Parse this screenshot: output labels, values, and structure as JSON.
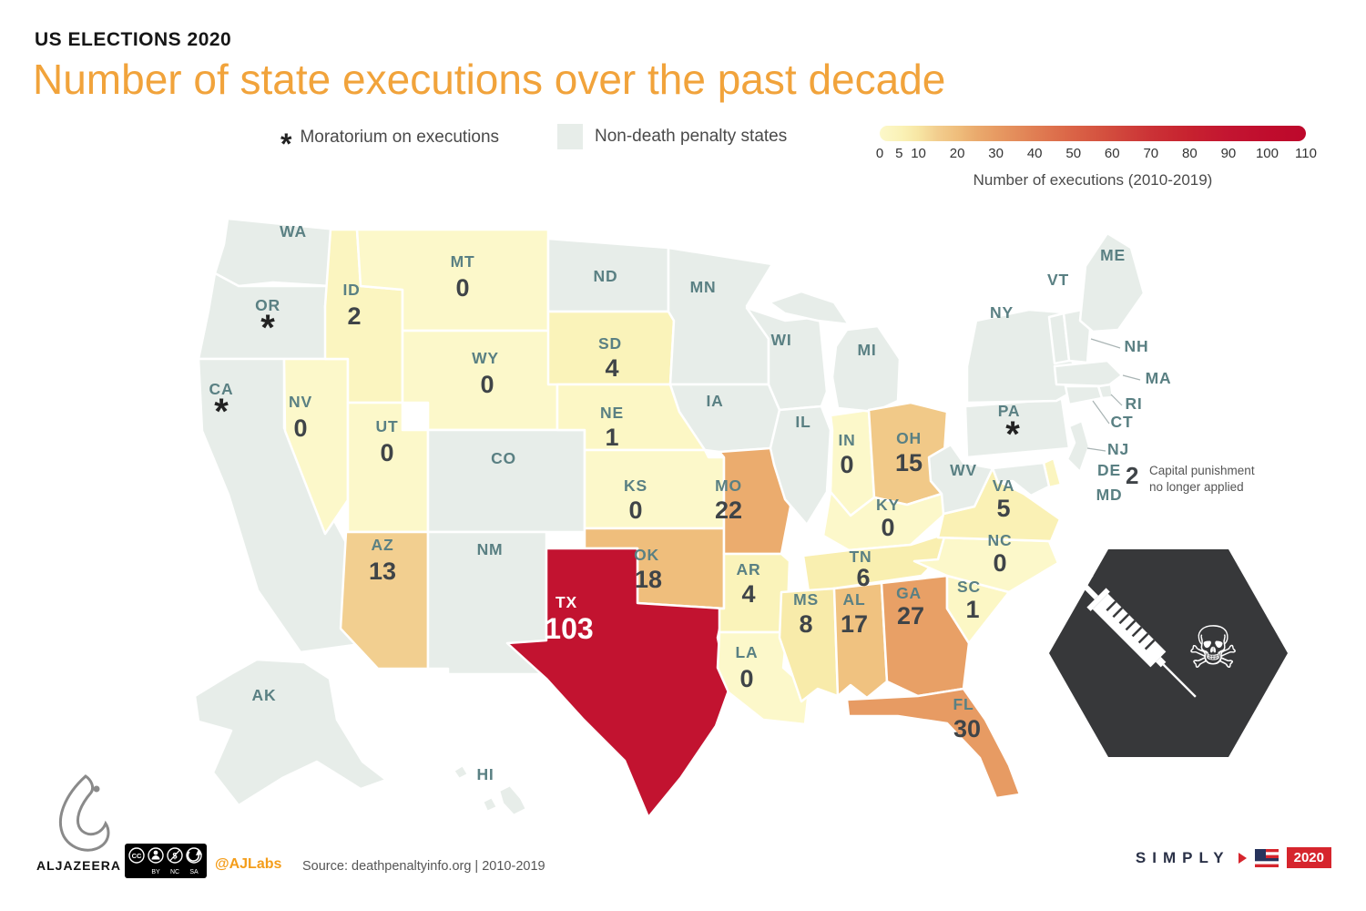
{
  "header": {
    "kicker": "US ELECTIONS 2020",
    "title": "Number of state executions over the past decade"
  },
  "legend": {
    "moratorium_symbol": "*",
    "moratorium_label": "Moratorium on executions",
    "non_death_label": "Non-death penalty states",
    "scale_label": "Number of executions (2010-2019)",
    "scale_ticks": [
      0,
      5,
      10,
      20,
      30,
      40,
      50,
      60,
      70,
      80,
      90,
      100,
      110
    ],
    "scale_max": 110
  },
  "colors": {
    "title_orange": "#F1A33B",
    "non_death_fill": "#E7EDE9",
    "texas_red": "#C21330",
    "state_code_teal": "#5A8083",
    "value_dark": "#3F4448"
  },
  "icons": {
    "skull": "☠"
  },
  "annotation": {
    "de_value": "2",
    "de_note_line1": "Capital punishment",
    "de_note_line2": "no longer applied"
  },
  "footer": {
    "brand": "ALJAZEERA",
    "cc": {
      "c1": "CC",
      "dollar": "$",
      "by": "BY",
      "nc": "NC",
      "sa": "SA"
    },
    "handle": "@AJLabs",
    "source": "Source: deathpenaltyinfo.org | 2010-2019",
    "simply": "SIMPLY",
    "year": "2020"
  },
  "chart_data": {
    "type": "choropleth",
    "region": "United States",
    "title": "Number of state executions over the past decade",
    "value_label": "Number of executions (2010-2019)",
    "value_range": [
      0,
      110
    ],
    "categories_legend": [
      "Moratorium on executions",
      "Non-death penalty states"
    ],
    "states": [
      {
        "code": "WA",
        "status": "non_death_penalty"
      },
      {
        "code": "OR",
        "status": "moratorium"
      },
      {
        "code": "CA",
        "status": "moratorium"
      },
      {
        "code": "NV",
        "value": 0
      },
      {
        "code": "ID",
        "value": 2
      },
      {
        "code": "UT",
        "value": 0
      },
      {
        "code": "AZ",
        "value": 13
      },
      {
        "code": "MT",
        "value": 0
      },
      {
        "code": "WY",
        "value": 0
      },
      {
        "code": "CO",
        "status": "non_death_penalty"
      },
      {
        "code": "NM",
        "status": "non_death_penalty"
      },
      {
        "code": "ND",
        "status": "non_death_penalty"
      },
      {
        "code": "SD",
        "value": 4
      },
      {
        "code": "NE",
        "value": 1
      },
      {
        "code": "KS",
        "value": 0
      },
      {
        "code": "OK",
        "value": 18
      },
      {
        "code": "TX",
        "value": 103
      },
      {
        "code": "MN",
        "status": "non_death_penalty"
      },
      {
        "code": "IA",
        "status": "non_death_penalty"
      },
      {
        "code": "MO",
        "value": 22
      },
      {
        "code": "AR",
        "value": 4
      },
      {
        "code": "LA",
        "value": 0
      },
      {
        "code": "WI",
        "status": "non_death_penalty"
      },
      {
        "code": "IL",
        "status": "non_death_penalty"
      },
      {
        "code": "IN",
        "value": 0
      },
      {
        "code": "MI",
        "status": "non_death_penalty"
      },
      {
        "code": "OH",
        "value": 15
      },
      {
        "code": "KY",
        "value": 0
      },
      {
        "code": "TN",
        "value": 6
      },
      {
        "code": "MS",
        "value": 8
      },
      {
        "code": "AL",
        "value": 17
      },
      {
        "code": "GA",
        "value": 27
      },
      {
        "code": "FL",
        "value": 30
      },
      {
        "code": "SC",
        "value": 1
      },
      {
        "code": "NC",
        "value": 0
      },
      {
        "code": "VA",
        "value": 5
      },
      {
        "code": "WV",
        "status": "non_death_penalty"
      },
      {
        "code": "PA",
        "status": "moratorium"
      },
      {
        "code": "NY",
        "status": "non_death_penalty"
      },
      {
        "code": "VT",
        "status": "non_death_penalty"
      },
      {
        "code": "NH",
        "status": "non_death_penalty"
      },
      {
        "code": "ME",
        "status": "non_death_penalty"
      },
      {
        "code": "MA",
        "status": "non_death_penalty"
      },
      {
        "code": "RI",
        "status": "non_death_penalty"
      },
      {
        "code": "CT",
        "status": "non_death_penalty"
      },
      {
        "code": "NJ",
        "status": "non_death_penalty"
      },
      {
        "code": "DE",
        "value": 2,
        "note": "Capital punishment no longer applied"
      },
      {
        "code": "MD",
        "status": "non_death_penalty"
      },
      {
        "code": "AK",
        "status": "non_death_penalty"
      },
      {
        "code": "HI",
        "status": "non_death_penalty"
      }
    ]
  }
}
